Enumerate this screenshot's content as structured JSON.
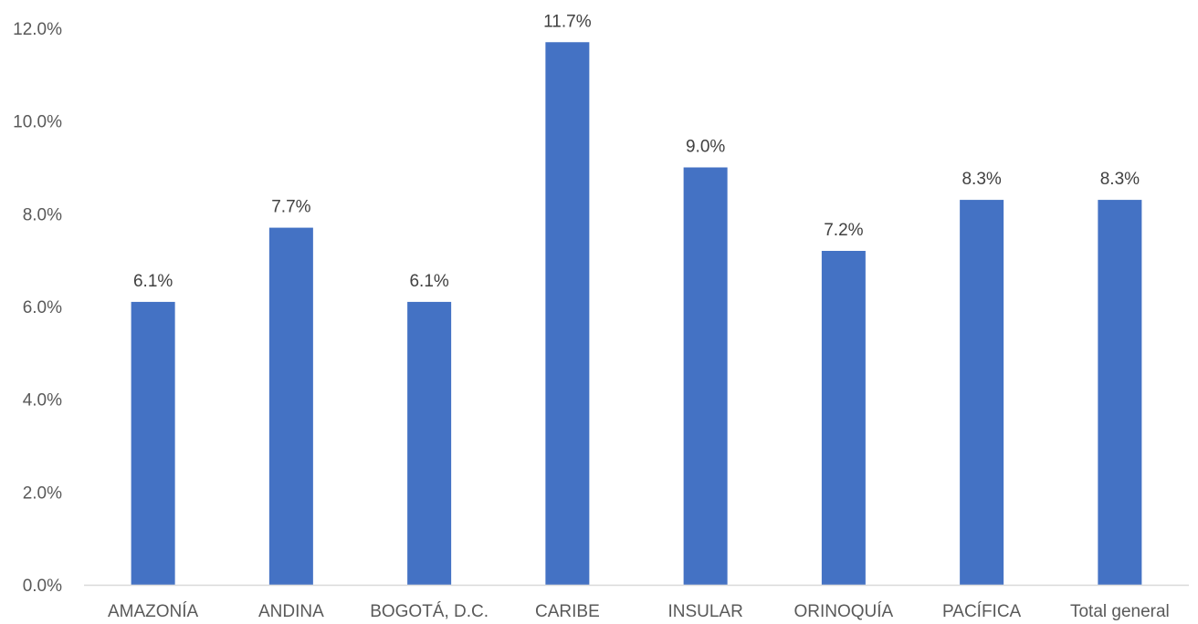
{
  "chart_data": {
    "type": "bar",
    "title": "",
    "xlabel": "",
    "ylabel": "",
    "categories": [
      "AMAZONÍA",
      "ANDINA",
      "BOGOTÁ, D.C.",
      "CARIBE",
      "INSULAR",
      "ORINOQUÍA",
      "PACÍFICA",
      "Total general"
    ],
    "values": [
      6.1,
      7.7,
      6.1,
      11.7,
      9.0,
      7.2,
      8.3,
      8.3
    ],
    "data_labels": [
      "6.1%",
      "7.7%",
      "6.1%",
      "11.7%",
      "9.0%",
      "7.2%",
      "8.3%",
      "8.3%"
    ],
    "ylim": [
      0,
      12
    ],
    "yticks": [
      0,
      2,
      4,
      6,
      8,
      10,
      12
    ],
    "ytick_labels": [
      "0.0%",
      "2.0%",
      "4.0%",
      "6.0%",
      "8.0%",
      "10.0%",
      "12.0%"
    ],
    "grid": false,
    "legend": "none",
    "bar_color": "#4472C4",
    "axis_color": "#D9D9D9"
  }
}
